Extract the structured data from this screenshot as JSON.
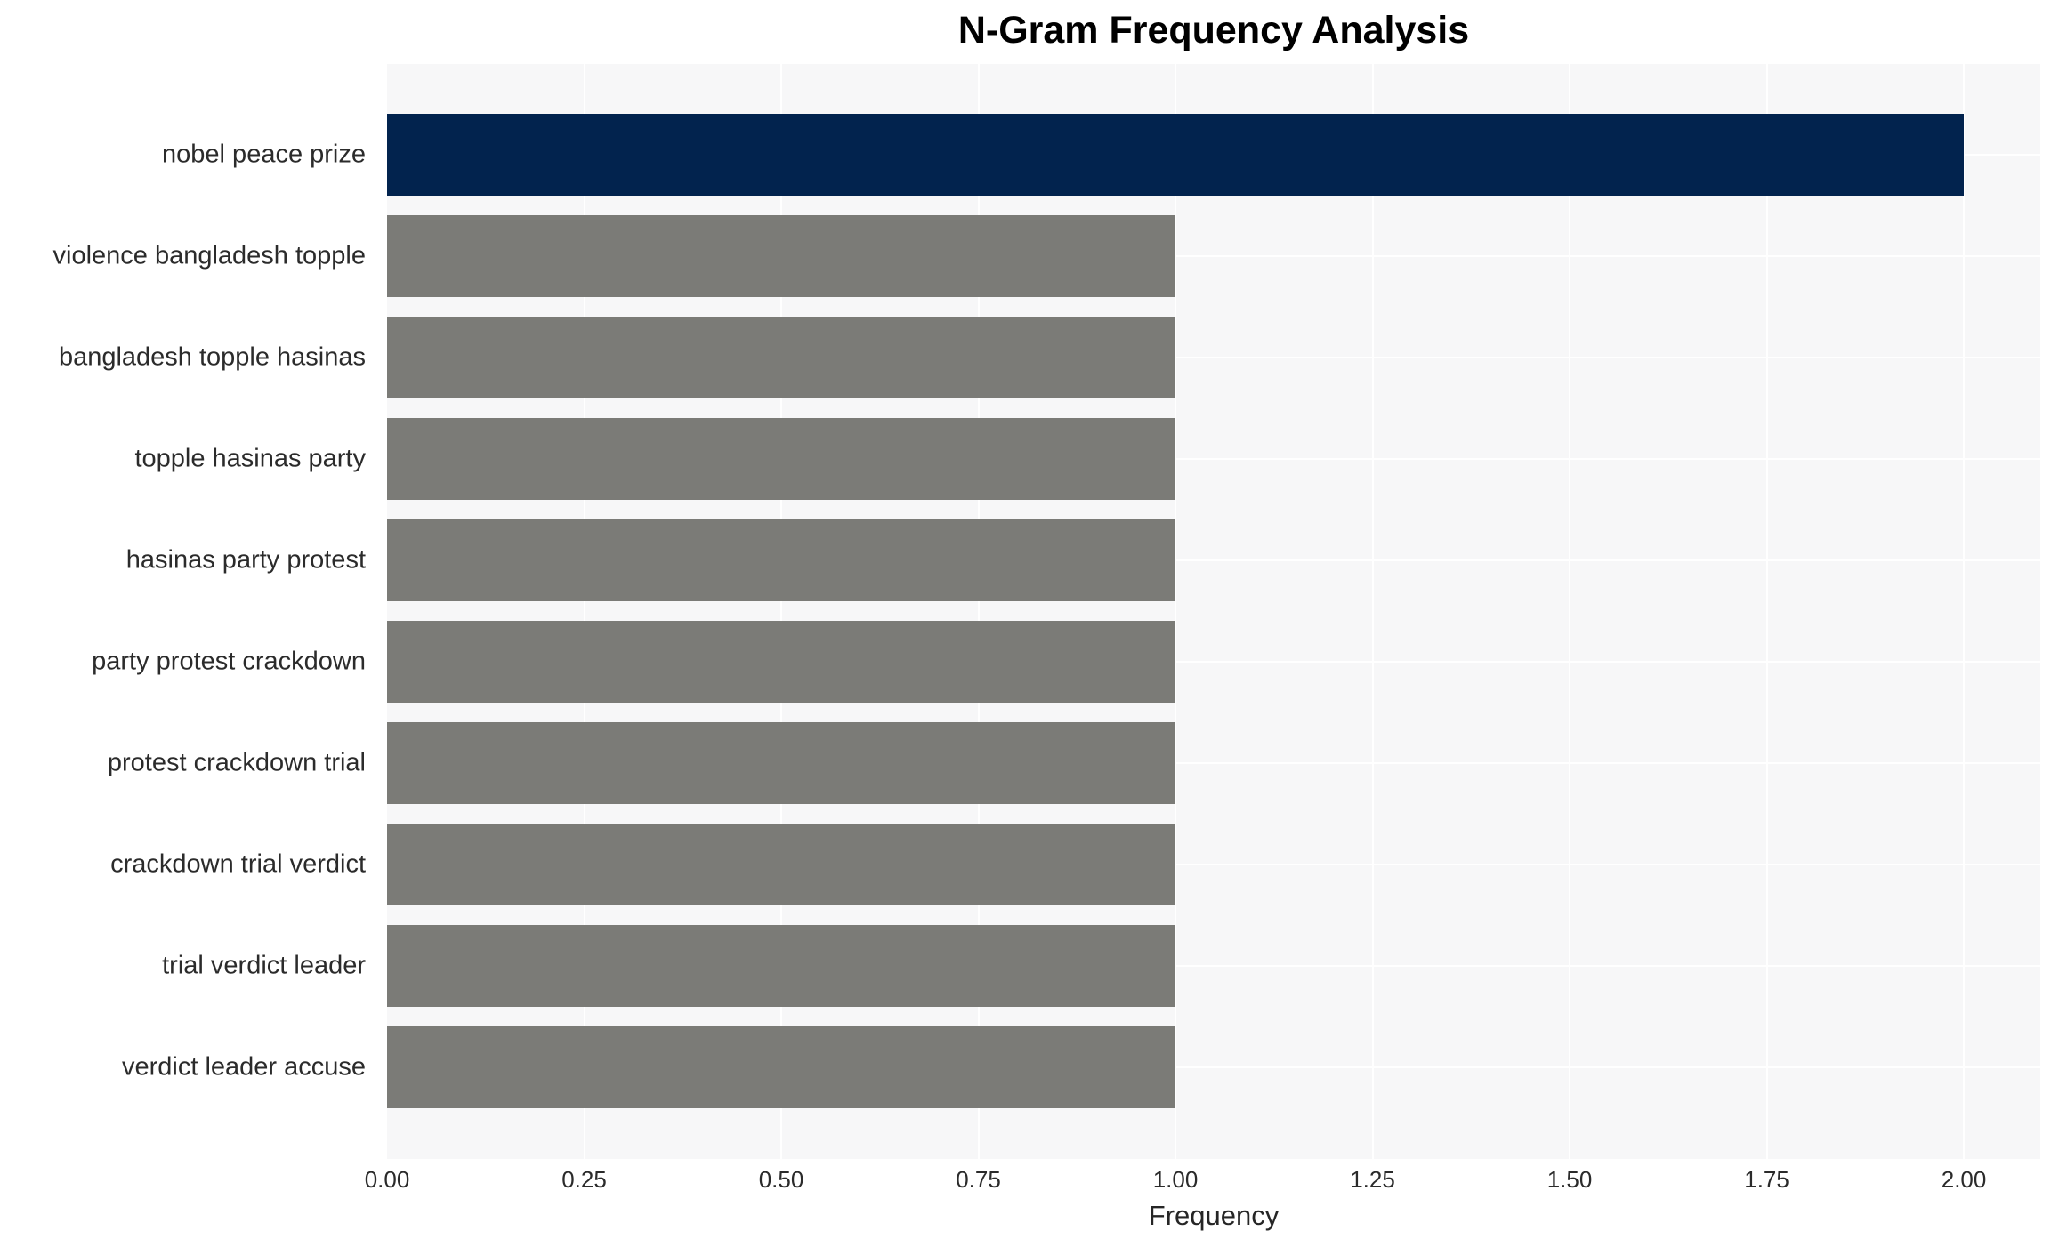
{
  "figure": {
    "title": "N-Gram Frequency Analysis",
    "xlabel": "Frequency"
  },
  "chart_data": {
    "type": "bar",
    "orientation": "horizontal",
    "title": "N-Gram Frequency Analysis",
    "xlabel": "Frequency",
    "ylabel": "",
    "categories": [
      "nobel peace prize",
      "violence bangladesh topple",
      "bangladesh topple hasinas",
      "topple hasinas party",
      "hasinas party protest",
      "party protest crackdown",
      "protest crackdown trial",
      "crackdown trial verdict",
      "trial verdict leader",
      "verdict leader accuse"
    ],
    "values": [
      2,
      1,
      1,
      1,
      1,
      1,
      1,
      1,
      1,
      1
    ],
    "bar_colors": [
      "#02234e",
      "#7b7b77",
      "#7b7b77",
      "#7b7b77",
      "#7b7b77",
      "#7b7b77",
      "#7b7b77",
      "#7b7b77",
      "#7b7b77",
      "#7b7b77"
    ],
    "highlight_color": "#02234e",
    "default_bar_color": "#7b7b77",
    "xtick_values": [
      0,
      0.25,
      0.5,
      0.75,
      1.0,
      1.25,
      1.5,
      1.75,
      2.0
    ],
    "xtick_labels": [
      "0.00",
      "0.25",
      "0.50",
      "0.75",
      "1.00",
      "1.25",
      "1.50",
      "1.75",
      "2.00"
    ],
    "xlim": [
      0,
      2.097
    ],
    "grid": true,
    "legend": false,
    "plot_bg_color": "#f7f7f8",
    "grid_color": "#ffffff"
  }
}
